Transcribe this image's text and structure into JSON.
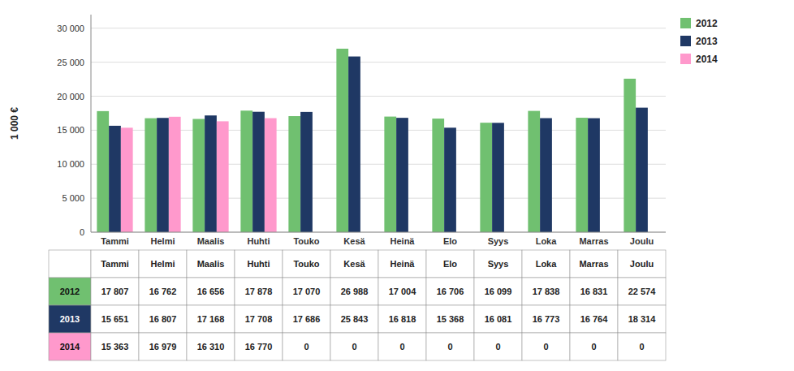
{
  "chart_data": {
    "type": "bar",
    "categories": [
      "Tammi",
      "Helmi",
      "Maalis",
      "Huhti",
      "Touko",
      "Kesä",
      "Heinä",
      "Elo",
      "Syys",
      "Loka",
      "Marras",
      "Joulu"
    ],
    "series": [
      {
        "name": "2012",
        "color": "#70C070",
        "values": [
          17807,
          16762,
          16656,
          17878,
          17070,
          26988,
          17004,
          16706,
          16099,
          17838,
          16831,
          22574
        ],
        "value_labels": [
          "17 807",
          "16 762",
          "16 656",
          "17 878",
          "17 070",
          "26 988",
          "17 004",
          "16 706",
          "16 099",
          "17 838",
          "16 831",
          "22 574"
        ]
      },
      {
        "name": "2013",
        "color": "#1F3864",
        "values": [
          15651,
          16807,
          17168,
          17708,
          17686,
          25843,
          16818,
          15368,
          16081,
          16773,
          16764,
          18314
        ],
        "value_labels": [
          "15 651",
          "16 807",
          "17 168",
          "17 708",
          "17 686",
          "25 843",
          "16 818",
          "15 368",
          "16 081",
          "16 773",
          "16 764",
          "18 314"
        ]
      },
      {
        "name": "2014",
        "color": "#FF99CC",
        "values": [
          15363,
          16979,
          16310,
          16770,
          0,
          0,
          0,
          0,
          0,
          0,
          0,
          0
        ],
        "value_labels": [
          "15 363",
          "16 979",
          "16 310",
          "16 770",
          "0",
          "0",
          "0",
          "0",
          "0",
          "0",
          "0",
          "0"
        ]
      }
    ],
    "ylabel": "1 000 €",
    "ylim": [
      0,
      32000
    ],
    "yticks": [
      0,
      {
        "value": 5000,
        "label": "5 000"
      },
      {
        "value": 10000,
        "label": "10 000"
      },
      {
        "value": 15000,
        "label": "15 000"
      },
      {
        "value": 20000,
        "label": "20 000"
      },
      {
        "value": 25000,
        "label": "25 000"
      },
      {
        "value": 30000,
        "label": "30 000"
      }
    ],
    "grid": true,
    "legend": "right"
  }
}
